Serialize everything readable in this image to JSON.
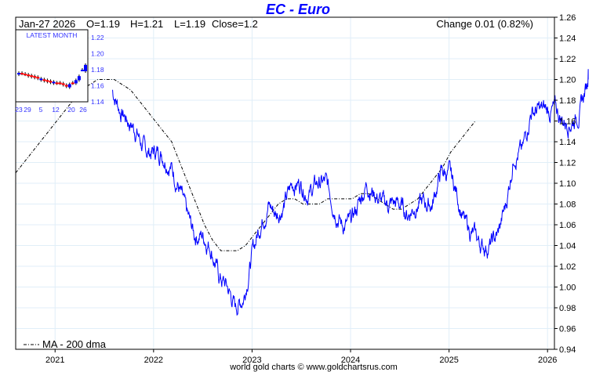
{
  "chart_data": {
    "type": "line",
    "title": "EC  -  Euro",
    "header": {
      "date": "Jan-27  2026",
      "open": "O=1.19",
      "high": "H=1.21",
      "low": "L=1.19",
      "close": "Close=1.2",
      "change": "Change 0.01 (0.82%)"
    },
    "ylim": [
      0.94,
      1.26
    ],
    "yticks": [
      "0.94",
      "0.96",
      "0.98",
      "1.00",
      "1.02",
      "1.04",
      "1.06",
      "1.08",
      "1.10",
      "1.12",
      "1.14",
      "1.16",
      "1.18",
      "1.20",
      "1.22",
      "1.24",
      "1.26"
    ],
    "xlim": [
      2020.6,
      2026.07
    ],
    "xticks": [
      {
        "label": "2021",
        "x": 2021
      },
      {
        "label": "2022",
        "x": 2022
      },
      {
        "label": "2023",
        "x": 2023
      },
      {
        "label": "2024",
        "x": 2024
      },
      {
        "label": "2025",
        "x": 2025
      },
      {
        "label": "2026",
        "x": 2026
      }
    ],
    "grid": true,
    "legend": {
      "label": "MA - 200 dma",
      "placement": "bottom-left"
    },
    "footer": "world gold charts © www.goldchartsrus.com",
    "colors": {
      "price": "#0000ff",
      "ma": "#000000",
      "title": "#0000ff",
      "grid": "#e0eef8"
    },
    "series": [
      {
        "name": "EC - Euro",
        "x_start": 2021.58,
        "step_months": 1,
        "values": [
          1.19,
          1.17,
          1.16,
          1.15,
          1.13,
          1.13,
          1.13,
          1.12,
          1.1,
          1.07,
          1.05,
          1.05,
          1.04,
          1.01,
          1.0,
          0.98,
          0.99,
          1.03,
          1.06,
          1.08,
          1.07,
          1.08,
          1.1,
          1.1,
          1.09,
          1.1,
          1.1,
          1.08,
          1.06,
          1.06,
          1.08,
          1.1,
          1.09,
          1.08,
          1.08,
          1.08,
          1.07,
          1.08,
          1.08,
          1.08,
          1.11,
          1.11,
          1.09,
          1.06,
          1.05,
          1.04,
          1.04,
          1.05,
          1.08,
          1.13,
          1.13,
          1.17,
          1.17,
          1.17,
          1.17,
          1.16,
          1.16,
          1.17,
          1.2
        ]
      },
      {
        "name": "MA - 200 dma",
        "x_start": 2020.6,
        "step_months": 1,
        "values": [
          1.11,
          1.12,
          1.13,
          1.14,
          1.15,
          1.16,
          1.17,
          1.18,
          1.19,
          1.195,
          1.2,
          1.2,
          1.2,
          1.195,
          1.19,
          1.18,
          1.17,
          1.16,
          1.15,
          1.14,
          1.12,
          1.1,
          1.08,
          1.06,
          1.045,
          1.035,
          1.035,
          1.035,
          1.04,
          1.05,
          1.06,
          1.07,
          1.08,
          1.085,
          1.085,
          1.08,
          1.08,
          1.08,
          1.085,
          1.085,
          1.085,
          1.085,
          1.09,
          1.09,
          1.085,
          1.08,
          1.075,
          1.075,
          1.08,
          1.085,
          1.095,
          1.105,
          1.115,
          1.13,
          1.14,
          1.15,
          1.16
        ]
      }
    ],
    "inset": {
      "title": "LATEST MONTH",
      "ylim": [
        1.14,
        1.22
      ],
      "yticks": [
        "1.14",
        "1.16",
        "1.18",
        "1.20",
        "1.22"
      ],
      "xticks": [
        {
          "label": "23",
          "i": 0
        },
        {
          "label": "29",
          "i": 1
        },
        {
          "label": "5",
          "i": 5
        },
        {
          "label": "12",
          "i": 10
        },
        {
          "label": "20",
          "i": 16
        },
        {
          "label": "26",
          "i": 20
        }
      ],
      "candles": [
        [
          1.174,
          1.176
        ],
        [
          1.176,
          1.175
        ],
        [
          1.175,
          1.174
        ],
        [
          1.174,
          1.172
        ],
        [
          1.173,
          1.171
        ],
        [
          1.172,
          1.17
        ],
        [
          1.171,
          1.169
        ],
        [
          1.167,
          1.169
        ],
        [
          1.168,
          1.166
        ],
        [
          1.167,
          1.165
        ],
        [
          1.166,
          1.164
        ],
        [
          1.163,
          1.165
        ],
        [
          1.164,
          1.163
        ],
        [
          1.164,
          1.163
        ],
        [
          1.163,
          1.161
        ],
        [
          1.161,
          1.159
        ],
        [
          1.158,
          1.162
        ],
        [
          1.164,
          1.163
        ],
        [
          1.163,
          1.167
        ],
        [
          1.167,
          1.172
        ],
        [
          1.18,
          1.18
        ],
        [
          1.178,
          1.186
        ]
      ]
    }
  }
}
